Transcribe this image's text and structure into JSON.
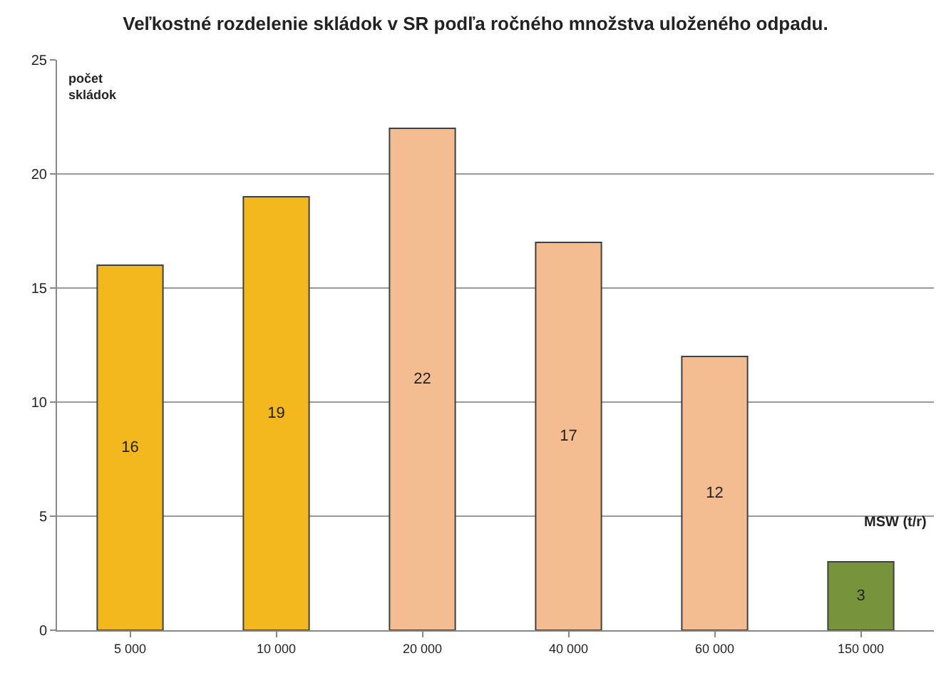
{
  "chart_data": {
    "type": "bar",
    "title": "Veľkostné rozdelenie skládok v SR podľa ročného množstva uloženého odpadu.",
    "ylabel": "počet skládok",
    "xlabel": "MSW (t/r)",
    "categories": [
      "5 000",
      "10 000",
      "20 000",
      "40 000",
      "60 000",
      "150 000"
    ],
    "values": [
      16,
      19,
      22,
      17,
      12,
      3
    ],
    "colors": [
      "#f2b81e",
      "#f2b81e",
      "#f4bc91",
      "#f4bc91",
      "#f4bc91",
      "#77933c"
    ],
    "ylim": [
      0,
      25
    ],
    "yticks": [
      0,
      5,
      10,
      15,
      20,
      25
    ],
    "grid": "y",
    "data_labels": true,
    "legend": false
  }
}
